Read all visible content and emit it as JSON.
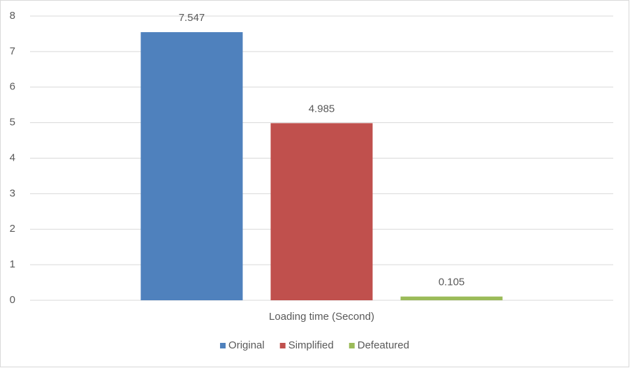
{
  "chart_data": {
    "type": "bar",
    "categories": [
      "Loading time (Second)"
    ],
    "series": [
      {
        "name": "Original",
        "color": "#4f81bd",
        "values": [
          7.547
        ]
      },
      {
        "name": "Simplified",
        "color": "#c0504d",
        "values": [
          4.985
        ]
      },
      {
        "name": "Defeatured",
        "color": "#9bbb59",
        "values": [
          0.105
        ]
      }
    ],
    "ylim": [
      0,
      8
    ],
    "yticks": [
      0,
      1,
      2,
      3,
      4,
      5,
      6,
      7,
      8
    ],
    "grid": true,
    "legend": "bottom"
  }
}
